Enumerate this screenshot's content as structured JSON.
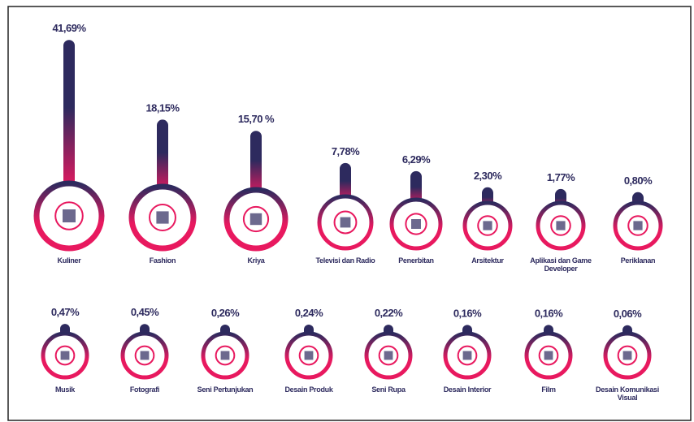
{
  "chart_data": {
    "type": "thermometer",
    "categories": [
      "Kuliner",
      "Fashion",
      "Kriya",
      "Televisi dan Radio",
      "Penerbitan",
      "Arsitektur",
      "Aplikasi dan Game Developer",
      "Periklanan",
      "Musik",
      "Fotografi",
      "Seni Pertunjukan",
      "Desain Produk",
      "Seni Rupa",
      "Desain Interior",
      "Film",
      "Desain Komunikasi Visual"
    ],
    "values": [
      41.69,
      18.15,
      15.7,
      7.78,
      6.29,
      2.3,
      1.77,
      0.8,
      0.47,
      0.45,
      0.26,
      0.24,
      0.22,
      0.16,
      0.16,
      0.06
    ],
    "value_labels": [
      "41,69%",
      "18,15%",
      "15,70 %",
      "7,78%",
      "6,29%",
      "2,30%",
      "1,77%",
      "0,80%",
      "0,47%",
      "0,45%",
      "0,26%",
      "0,24%",
      "0,22%",
      "0,16%",
      "0,16%",
      "0,06%"
    ],
    "colors": [
      "#2d2a5e",
      "#e8195f"
    ]
  }
}
